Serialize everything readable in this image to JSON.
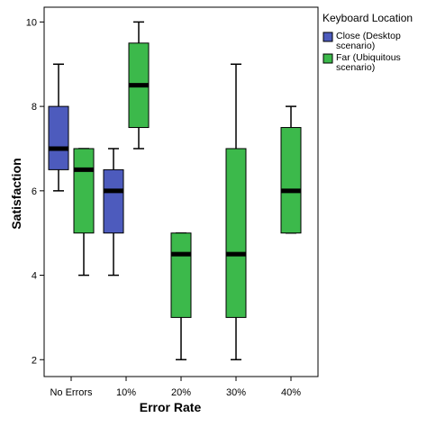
{
  "chart_data": {
    "type": "box",
    "xlabel": "Error Rate",
    "ylabel": "Satisfaction",
    "ylim": [
      1.6,
      10.35
    ],
    "yticks": [
      2,
      4,
      6,
      8,
      10
    ],
    "categories": [
      "No Errors",
      "10%",
      "20%",
      "30%",
      "40%"
    ],
    "legend": {
      "title": "Keyboard Location",
      "placement": "right",
      "entries": [
        {
          "series": 0,
          "label_lines": [
            "Close (Desktop",
            "scenario)"
          ]
        },
        {
          "series": 1,
          "label_lines": [
            "Far (Ubiquitous",
            "scenario)"
          ]
        }
      ]
    },
    "series": [
      {
        "name": "Close (Desktop scenario)",
        "color": "#4d5bbd",
        "boxes": [
          {
            "category": "No Errors",
            "min": 6,
            "q1": 6.5,
            "median": 7,
            "q3": 8,
            "max": 9
          },
          {
            "category": "10%",
            "min": 4,
            "q1": 5,
            "median": 6,
            "q3": 6.5,
            "max": 7
          }
        ]
      },
      {
        "name": "Far (Ubiquitous scenario)",
        "color": "#3cb94b",
        "boxes": [
          {
            "category": "No Errors",
            "min": 4,
            "q1": 5,
            "median": 6.5,
            "q3": 7,
            "max": 7
          },
          {
            "category": "10%",
            "min": 7,
            "q1": 7.5,
            "median": 8.5,
            "q3": 9.5,
            "max": 10
          },
          {
            "category": "20%",
            "min": 2,
            "q1": 3,
            "median": 4.5,
            "q3": 5,
            "max": 5
          },
          {
            "category": "30%",
            "min": 2,
            "q1": 3,
            "median": 4.5,
            "q3": 7,
            "max": 9
          },
          {
            "category": "40%",
            "min": 5,
            "q1": 5,
            "median": 6,
            "q3": 7.5,
            "max": 8
          }
        ]
      }
    ]
  }
}
